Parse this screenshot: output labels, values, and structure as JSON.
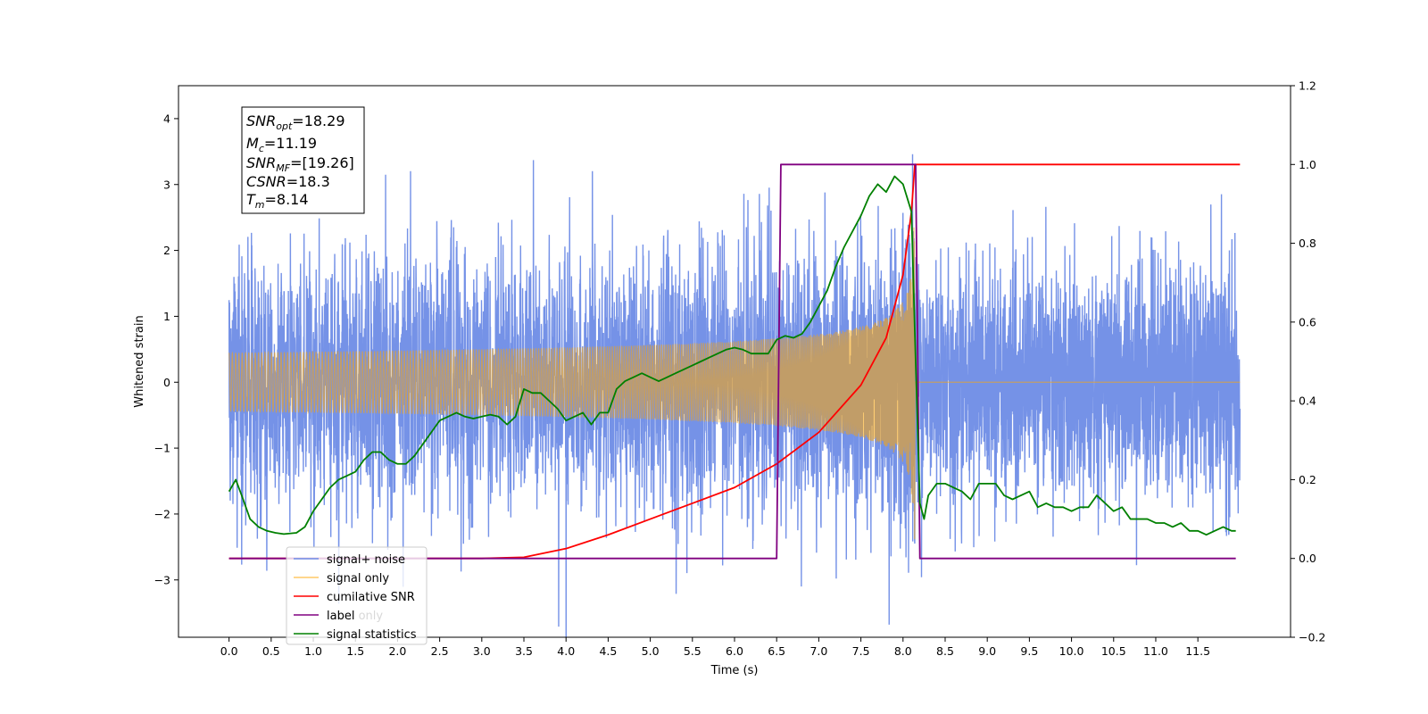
{
  "chart_data": {
    "type": "line",
    "xlabel": "Time (s)",
    "ylabel": "Whitened strain",
    "xlim": [
      -0.6,
      12.6
    ],
    "ylim": [
      -3.87,
      4.5
    ],
    "y2lim": [
      -0.2,
      1.2
    ],
    "x_ticks": [
      "0.0",
      "0.5",
      "1.0",
      "1.5",
      "2.0",
      "2.5",
      "3.0",
      "3.5",
      "4.0",
      "4.5",
      "5.0",
      "5.5",
      "6.0",
      "6.5",
      "7.0",
      "7.5",
      "8.0",
      "8.5",
      "9.0",
      "9.5",
      "10.0",
      "10.5",
      "11.0",
      "11.5"
    ],
    "y_ticks": [
      "−3",
      "−2",
      "−1",
      "0",
      "1",
      "2",
      "3",
      "4"
    ],
    "y2_ticks": [
      "−0.2",
      "0.0",
      "0.2",
      "0.4",
      "0.6",
      "0.8",
      "1.0",
      "1.2"
    ],
    "annotation": {
      "lines": [
        {
          "main": "SNR",
          "sub": "opt",
          "value": "=18.29"
        },
        {
          "main": "M",
          "sub": "c",
          "value": "=11.19"
        },
        {
          "main": "SNR",
          "sub": "MF",
          "value": "=[19.26]"
        },
        {
          "main": "CSNR",
          "sub": "",
          "value": "=18.3"
        },
        {
          "main": "T",
          "sub": "m",
          "value": "=8.14"
        }
      ]
    },
    "legend": {
      "position": "lower-left",
      "entries": [
        "signal+ noise",
        "signal only",
        "cumilative SNR",
        "label",
        "signal statistics"
      ],
      "hidden_entries": [
        "label only"
      ]
    },
    "colors": {
      "signal_noise": "#6e8ce6",
      "signal_only": "#ffa500",
      "cumulative_snr": "#ff0000",
      "label": "#800080",
      "signal_statistics": "#008000"
    },
    "noise": {
      "t_start": 0.0,
      "t_end": 12.0,
      "std": 1.05
    },
    "signal_only": {
      "t_start": 0.0,
      "t_merge": 8.14,
      "peak_amplitude": 3.0
    },
    "cumulative_snr": {
      "x": [
        0.0,
        2.0,
        3.0,
        3.5,
        4.0,
        4.5,
        5.0,
        5.5,
        6.0,
        6.5,
        7.0,
        7.5,
        7.8,
        8.0,
        8.1,
        8.14,
        12.0
      ],
      "y": [
        0.0,
        0.0,
        0.0,
        0.003,
        0.025,
        0.06,
        0.1,
        0.14,
        0.18,
        0.24,
        0.32,
        0.44,
        0.56,
        0.72,
        0.88,
        1.0,
        1.0
      ]
    },
    "label_curve": {
      "x": [
        0.0,
        6.5,
        6.55,
        8.15,
        8.2,
        11.95
      ],
      "y": [
        0.0,
        0.0,
        1.0,
        1.0,
        0.0,
        0.0
      ]
    },
    "signal_statistics": {
      "x": [
        0.0,
        0.08,
        0.15,
        0.25,
        0.35,
        0.45,
        0.55,
        0.65,
        0.8,
        0.9,
        1.0,
        1.1,
        1.2,
        1.3,
        1.4,
        1.5,
        1.6,
        1.7,
        1.8,
        1.9,
        2.0,
        2.1,
        2.2,
        2.3,
        2.4,
        2.5,
        2.6,
        2.7,
        2.8,
        2.9,
        3.0,
        3.1,
        3.2,
        3.3,
        3.4,
        3.5,
        3.6,
        3.7,
        3.8,
        3.9,
        4.0,
        4.1,
        4.2,
        4.3,
        4.4,
        4.5,
        4.6,
        4.7,
        4.8,
        4.9,
        5.0,
        5.1,
        5.2,
        5.3,
        5.4,
        5.5,
        5.6,
        5.7,
        5.8,
        5.9,
        6.0,
        6.1,
        6.2,
        6.3,
        6.4,
        6.5,
        6.6,
        6.7,
        6.8,
        6.9,
        7.0,
        7.1,
        7.2,
        7.3,
        7.4,
        7.5,
        7.6,
        7.7,
        7.8,
        7.9,
        8.0,
        8.1,
        8.15,
        8.2,
        8.25,
        8.3,
        8.4,
        8.5,
        8.6,
        8.7,
        8.8,
        8.9,
        9.0,
        9.1,
        9.2,
        9.3,
        9.4,
        9.5,
        9.6,
        9.7,
        9.8,
        9.9,
        10.0,
        10.1,
        10.2,
        10.3,
        10.4,
        10.5,
        10.6,
        10.7,
        10.8,
        10.9,
        11.0,
        11.1,
        11.2,
        11.3,
        11.4,
        11.5,
        11.6,
        11.7,
        11.8,
        11.9,
        11.95
      ],
      "y": [
        0.17,
        0.2,
        0.16,
        0.1,
        0.08,
        0.07,
        0.065,
        0.062,
        0.065,
        0.08,
        0.12,
        0.15,
        0.18,
        0.2,
        0.21,
        0.22,
        0.25,
        0.27,
        0.27,
        0.25,
        0.24,
        0.24,
        0.26,
        0.29,
        0.32,
        0.35,
        0.36,
        0.37,
        0.36,
        0.355,
        0.36,
        0.365,
        0.36,
        0.34,
        0.36,
        0.43,
        0.42,
        0.42,
        0.4,
        0.38,
        0.35,
        0.36,
        0.37,
        0.34,
        0.37,
        0.37,
        0.43,
        0.45,
        0.46,
        0.47,
        0.46,
        0.45,
        0.46,
        0.47,
        0.48,
        0.49,
        0.5,
        0.51,
        0.52,
        0.53,
        0.535,
        0.53,
        0.52,
        0.52,
        0.52,
        0.555,
        0.565,
        0.56,
        0.57,
        0.6,
        0.64,
        0.68,
        0.74,
        0.79,
        0.83,
        0.87,
        0.92,
        0.95,
        0.93,
        0.97,
        0.95,
        0.88,
        0.5,
        0.14,
        0.1,
        0.16,
        0.19,
        0.19,
        0.18,
        0.17,
        0.15,
        0.19,
        0.19,
        0.19,
        0.16,
        0.15,
        0.16,
        0.17,
        0.13,
        0.14,
        0.13,
        0.13,
        0.12,
        0.13,
        0.13,
        0.16,
        0.14,
        0.12,
        0.13,
        0.1,
        0.1,
        0.1,
        0.09,
        0.09,
        0.08,
        0.09,
        0.07,
        0.07,
        0.06,
        0.07,
        0.08,
        0.07,
        0.07
      ]
    }
  }
}
